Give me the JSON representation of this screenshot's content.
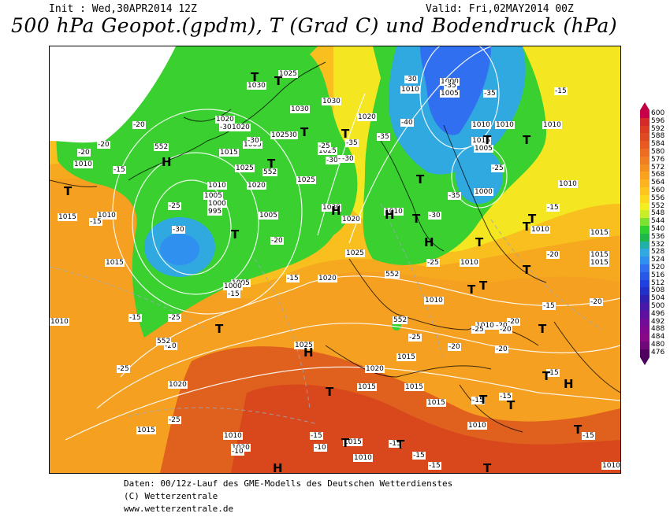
{
  "header": {
    "init": "Init : Wed,30APR2014 12Z",
    "valid": "Valid: Fri,02MAY2014 00Z",
    "title": "500 hPa Geopot.(gpdm), T (Grad C) und Bodendruck (hPa)"
  },
  "legend": {
    "values": [
      "600",
      "596",
      "592",
      "588",
      "584",
      "580",
      "576",
      "572",
      "568",
      "564",
      "560",
      "556",
      "552",
      "548",
      "544",
      "540",
      "536",
      "532",
      "528",
      "524",
      "520",
      "516",
      "512",
      "508",
      "504",
      "500",
      "496",
      "492",
      "488",
      "484",
      "480",
      "476"
    ],
    "colors": [
      "#c8004a",
      "#d42a2a",
      "#dc3b24",
      "#e04a22",
      "#e85a22",
      "#ec6c22",
      "#f07e22",
      "#f49020",
      "#f8a21e",
      "#fbb420",
      "#fcc61e",
      "#fcd81e",
      "#f4ee20",
      "#c8ee28",
      "#7ee030",
      "#30d030",
      "#20b848",
      "#20b0a8",
      "#30a8e0",
      "#3090f0",
      "#3070f0",
      "#2858e8",
      "#2040e0",
      "#2030c8",
      "#3020b0",
      "#4818a8",
      "#6010a0",
      "#700c98",
      "#800890",
      "#880888",
      "#700878",
      "#500060"
    ]
  },
  "map": {
    "pressure_labels": [
      {
        "text": "1025"
      },
      {
        "text": "1030"
      },
      {
        "text": "1030"
      },
      {
        "text": "1030"
      },
      {
        "text": "1020"
      },
      {
        "text": "1020"
      },
      {
        "text": "1015"
      },
      {
        "text": "1030"
      },
      {
        "text": "1025"
      },
      {
        "text": "1025"
      },
      {
        "text": "1020"
      },
      {
        "text": "1010"
      },
      {
        "text": "1005"
      },
      {
        "text": "1000"
      },
      {
        "text": "995"
      },
      {
        "text": "1025"
      },
      {
        "text": "1030"
      },
      {
        "text": "1025"
      },
      {
        "text": "1020"
      },
      {
        "text": "1005"
      },
      {
        "text": "1000"
      },
      {
        "text": "1005"
      },
      {
        "text": "1010"
      },
      {
        "text": "1010"
      },
      {
        "text": "1015"
      },
      {
        "text": "1020"
      },
      {
        "text": "1010"
      },
      {
        "text": "1005"
      },
      {
        "text": "1000"
      },
      {
        "text": "1010"
      },
      {
        "text": "1010"
      },
      {
        "text": "1010"
      },
      {
        "text": "1010"
      },
      {
        "text": "1015"
      },
      {
        "text": "1015"
      },
      {
        "text": "1015"
      },
      {
        "text": "1010"
      },
      {
        "text": "1010"
      },
      {
        "text": "1025"
      },
      {
        "text": "1015"
      },
      {
        "text": "1020"
      },
      {
        "text": "1015"
      },
      {
        "text": "1015"
      },
      {
        "text": "1015"
      },
      {
        "text": "1010"
      },
      {
        "text": "1015"
      },
      {
        "text": "1010"
      },
      {
        "text": "1010"
      },
      {
        "text": "1020"
      },
      {
        "text": "1015"
      },
      {
        "text": "1010"
      },
      {
        "text": "1010"
      },
      {
        "text": "1020"
      },
      {
        "text": "1015"
      },
      {
        "text": "1010"
      },
      {
        "text": "1005"
      },
      {
        "text": "1000"
      },
      {
        "text": "1020"
      },
      {
        "text": "1025"
      },
      {
        "text": "1005"
      },
      {
        "text": "1015"
      },
      {
        "text": "1010"
      },
      {
        "text": "1010"
      }
    ],
    "temperature_labels": [
      {
        "text": "-20"
      },
      {
        "text": "-30"
      },
      {
        "text": "-30"
      },
      {
        "text": "-20"
      },
      {
        "text": "-25"
      },
      {
        "text": "-30"
      },
      {
        "text": "-20"
      },
      {
        "text": "-15"
      },
      {
        "text": "-25"
      },
      {
        "text": "-30"
      },
      {
        "text": "-25"
      },
      {
        "text": "-20"
      },
      {
        "text": "-15"
      },
      {
        "text": "-15"
      },
      {
        "text": "-25"
      },
      {
        "text": "-25"
      },
      {
        "text": "-20"
      },
      {
        "text": "-15"
      },
      {
        "text": "-35"
      },
      {
        "text": "-30"
      },
      {
        "text": "-30"
      },
      {
        "text": "-35"
      },
      {
        "text": "-35"
      },
      {
        "text": "-40"
      },
      {
        "text": "-35"
      },
      {
        "text": "-30"
      },
      {
        "text": "-25"
      },
      {
        "text": "-25"
      },
      {
        "text": "-35"
      },
      {
        "text": "-30"
      },
      {
        "text": "-25"
      },
      {
        "text": "-20"
      },
      {
        "text": "-20"
      },
      {
        "text": "-20"
      },
      {
        "text": "-25"
      },
      {
        "text": "-20"
      },
      {
        "text": "-20"
      },
      {
        "text": "-15"
      },
      {
        "text": "-15"
      },
      {
        "text": "-15"
      },
      {
        "text": "-15"
      },
      {
        "text": "-15"
      },
      {
        "text": "-15"
      },
      {
        "text": "-15"
      },
      {
        "text": "-15"
      },
      {
        "text": "-10"
      },
      {
        "text": "-10"
      },
      {
        "text": "-15"
      },
      {
        "text": "-15"
      },
      {
        "text": "-15"
      },
      {
        "text": "-15"
      },
      {
        "text": "-20"
      },
      {
        "text": "-20"
      }
    ],
    "geopotential_labels": [
      {
        "text": "552"
      },
      {
        "text": "552"
      },
      {
        "text": "552"
      },
      {
        "text": "552"
      },
      {
        "text": "552"
      }
    ],
    "systems": [
      {
        "text": "T"
      },
      {
        "text": "T"
      },
      {
        "text": "T"
      },
      {
        "text": "T"
      },
      {
        "text": "H"
      },
      {
        "text": "T"
      },
      {
        "text": "T"
      },
      {
        "text": "T"
      },
      {
        "text": "H"
      },
      {
        "text": "H"
      },
      {
        "text": "H"
      },
      {
        "text": "T"
      },
      {
        "text": "T"
      },
      {
        "text": "T"
      },
      {
        "text": "T"
      },
      {
        "text": "T"
      },
      {
        "text": "T"
      },
      {
        "text": "T"
      },
      {
        "text": "T"
      },
      {
        "text": "H"
      },
      {
        "text": "T"
      },
      {
        "text": "T"
      },
      {
        "text": "T"
      },
      {
        "text": "T"
      },
      {
        "text": "T"
      },
      {
        "text": "H"
      },
      {
        "text": "T"
      },
      {
        "text": "T"
      },
      {
        "text": "H"
      },
      {
        "text": "T"
      },
      {
        "text": "T"
      },
      {
        "text": "T"
      },
      {
        "text": "T"
      },
      {
        "text": "T"
      }
    ]
  },
  "footer": {
    "line1": "Daten: 00/12z-Lauf des GME-Modells des Deutschen Wetterdienstes",
    "line2": "(C) Wetterzentrale",
    "line3": "www.wetterzentrale.de"
  }
}
